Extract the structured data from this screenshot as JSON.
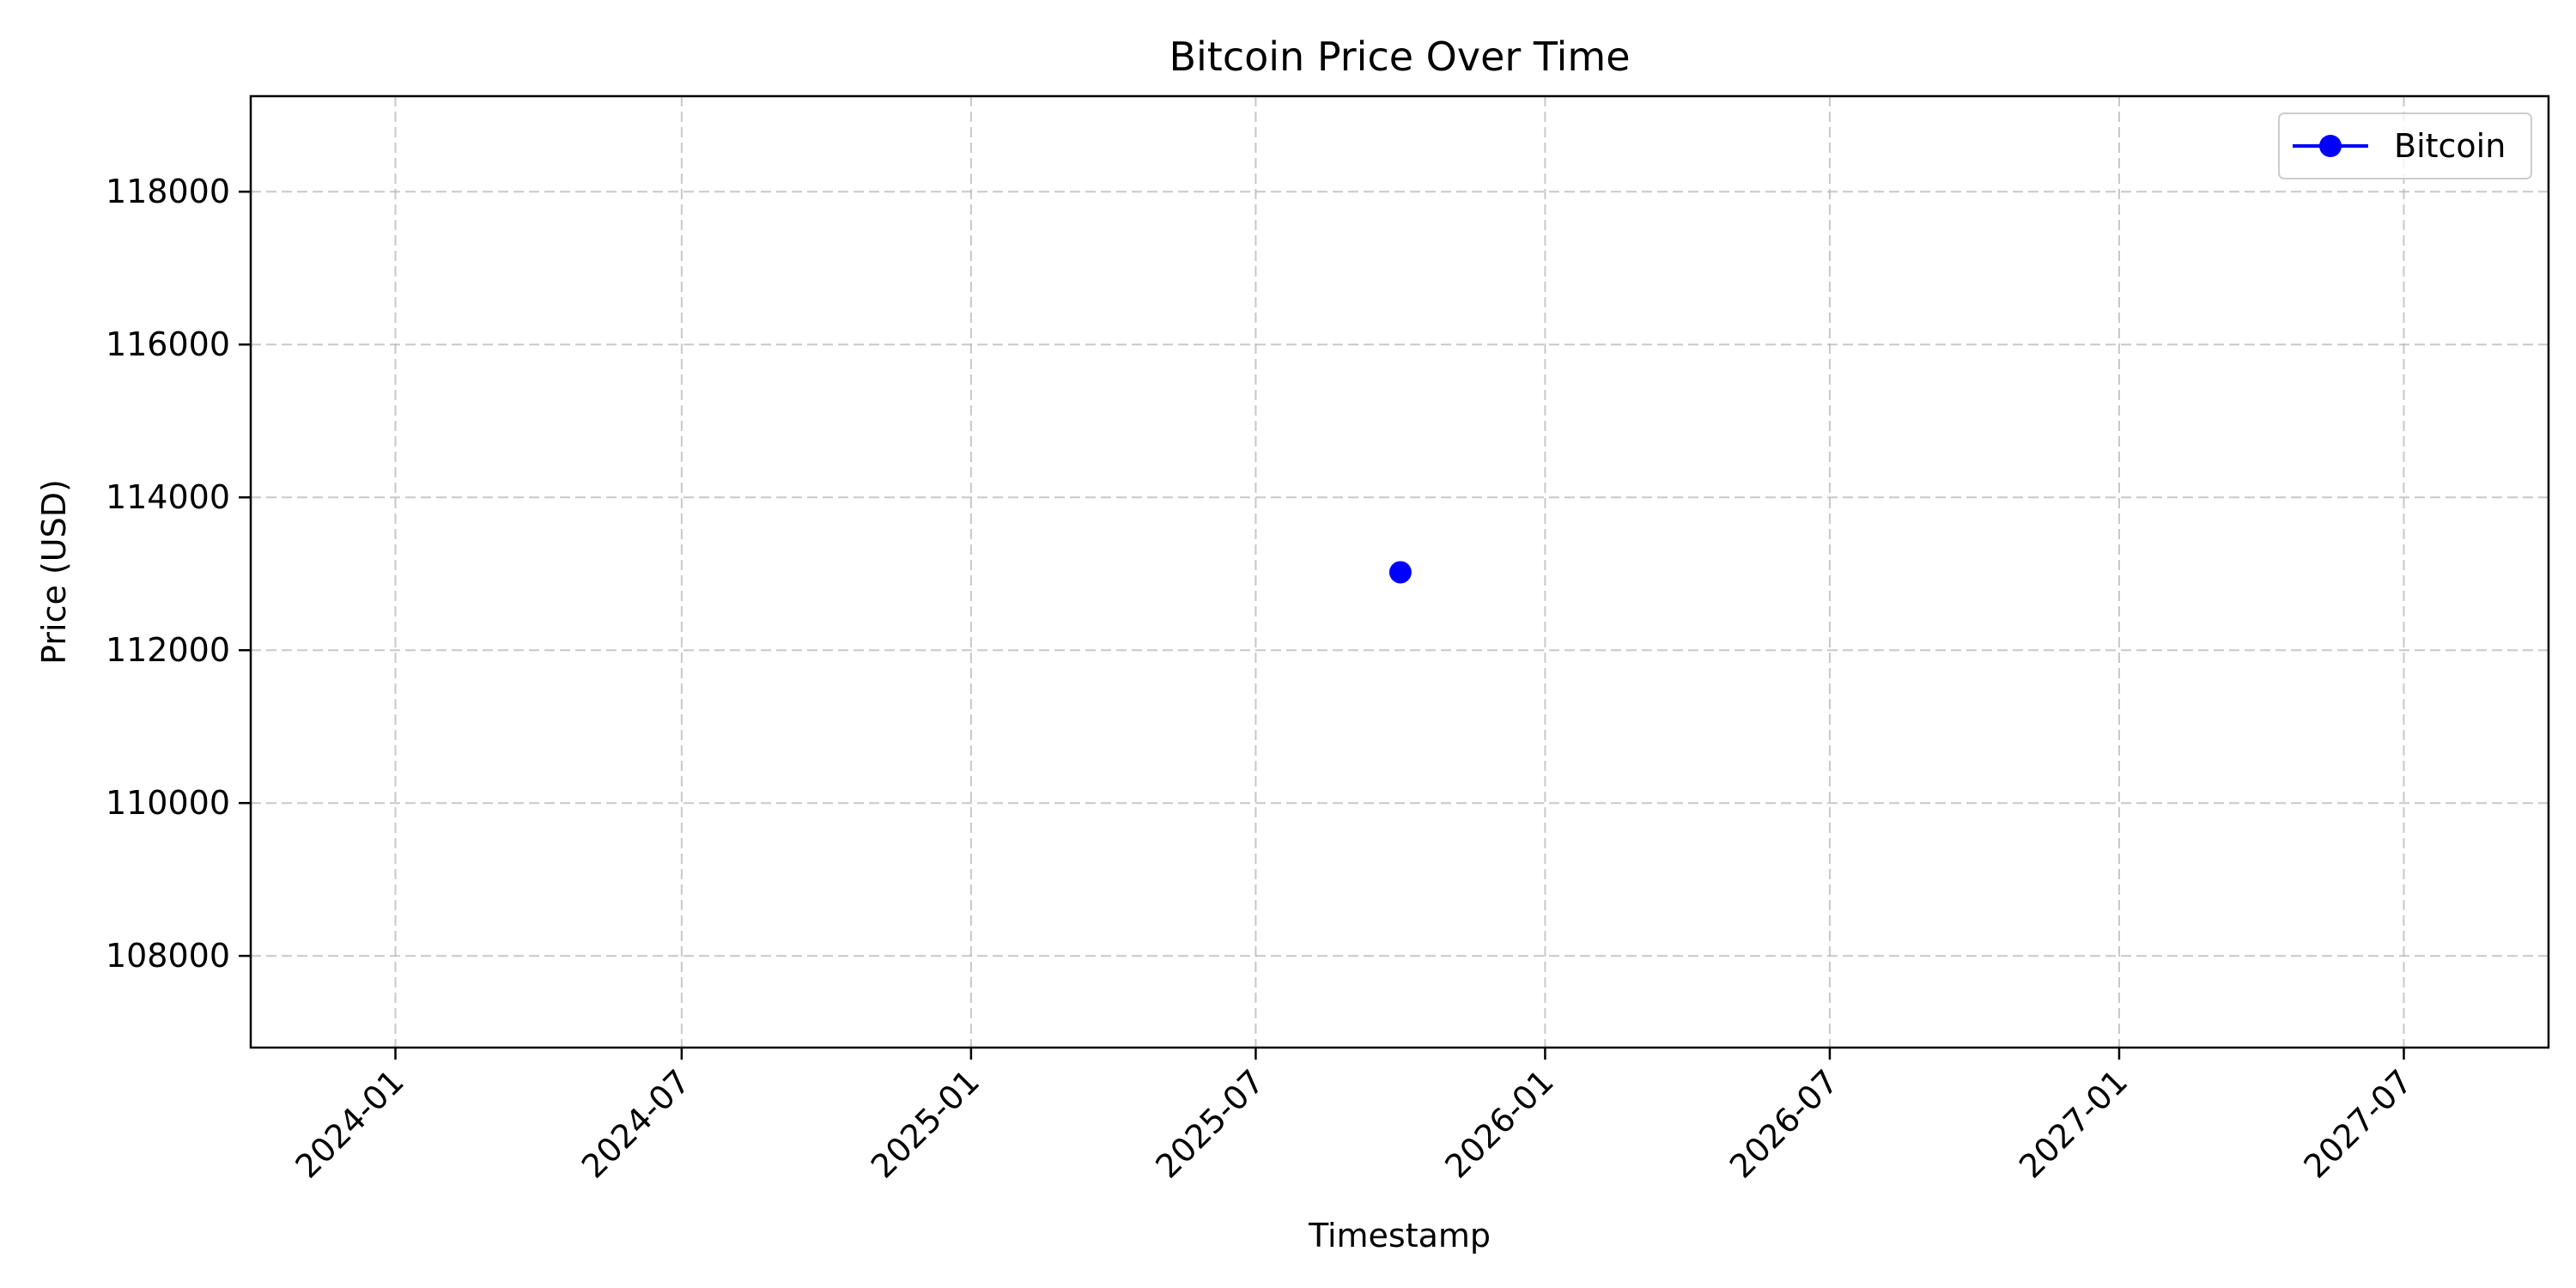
{
  "chart_data": {
    "type": "line",
    "title": "Bitcoin Price Over Time",
    "xlabel": "Timestamp",
    "ylabel": "Price (USD)",
    "x_ticks": [
      "2024-01",
      "2024-07",
      "2025-01",
      "2025-07",
      "2026-01",
      "2026-07",
      "2027-01",
      "2027-07"
    ],
    "y_ticks": [
      108000,
      110000,
      112000,
      114000,
      116000,
      118000
    ],
    "xlim": [
      "2023-10-01",
      "2027-10-01"
    ],
    "ylim": [
      106800,
      119250
    ],
    "grid": true,
    "legend_position": "top-right",
    "series": [
      {
        "name": "Bitcoin",
        "color": "#0000ff",
        "marker": "circle",
        "points": [
          {
            "x": "2025-10-01",
            "y": 113020
          }
        ]
      }
    ]
  }
}
